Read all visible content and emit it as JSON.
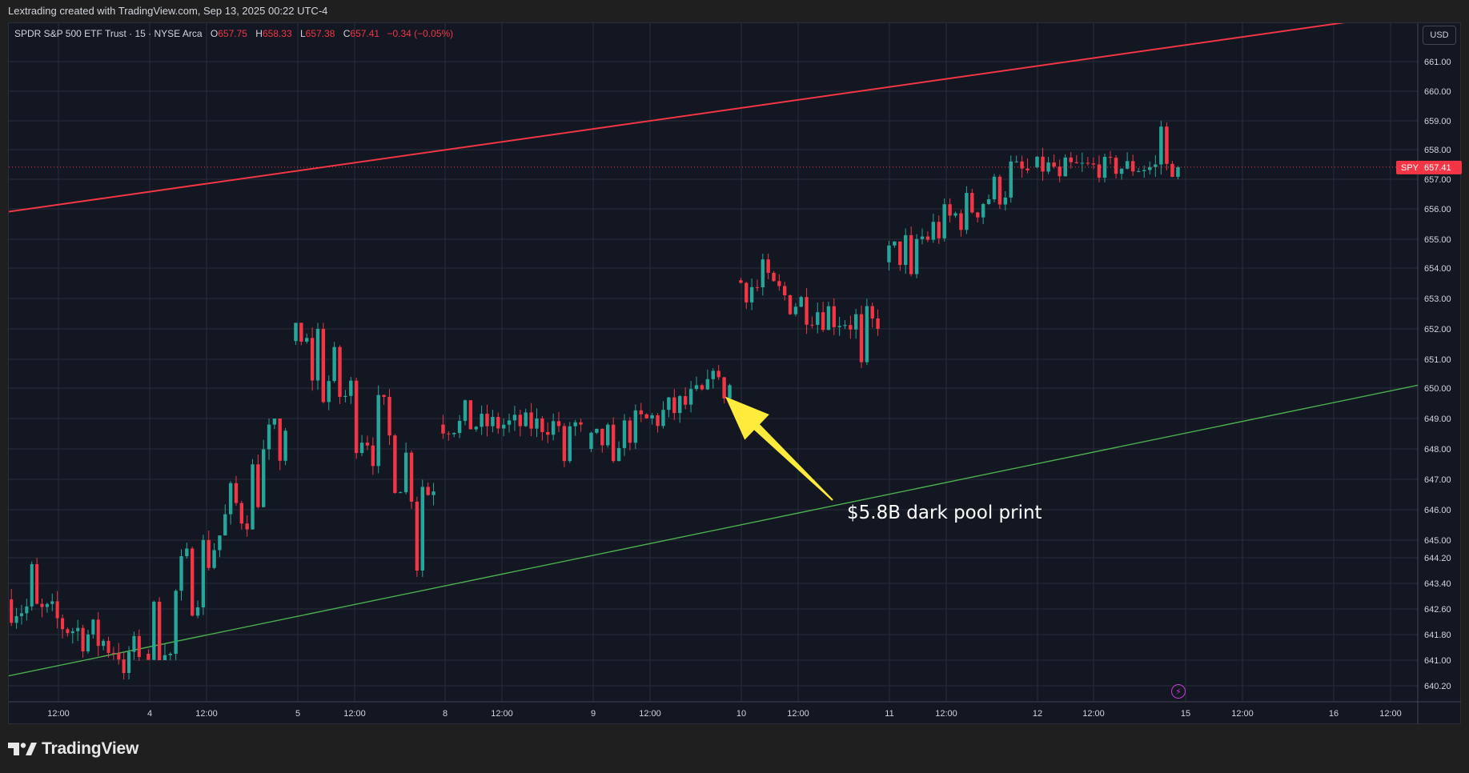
{
  "header": {
    "credit": "Lextrading created with TradingView.com, Sep 13, 2025 00:22 UTC-4"
  },
  "legend": {
    "symbol": "SPDR S&P 500 ETF Trust · 15 · NYSE Arca",
    "open_label": "O",
    "open": "657.75",
    "high_label": "H",
    "high": "658.33",
    "low_label": "L",
    "low": "657.38",
    "close_label": "C",
    "close": "657.41",
    "change": "−0.34 (−0.05%)"
  },
  "currency_button": "USD",
  "last_price": {
    "ticker": "SPY",
    "value": "657.41"
  },
  "annotation": {
    "text": "$5.8B dark pool print"
  },
  "brand": {
    "name": "TradingView"
  },
  "colors": {
    "background": "#131722",
    "up": "#26a69a",
    "down": "#f23645",
    "resistance_line": "#f23645",
    "support_line": "#4caf50",
    "arrow": "#ffeb3b",
    "grid": "#2a2e39"
  },
  "chart_data": {
    "type": "candlestick",
    "instrument": "SPDR S&P 500 ETF Trust",
    "interval": "15",
    "exchange": "NYSE Arca",
    "currency": "USD",
    "y_ticks": [
      "640.20",
      "641.00",
      "641.80",
      "642.60",
      "643.40",
      "644.20",
      "645.00",
      "646.00",
      "647.00",
      "648.00",
      "649.00",
      "650.00",
      "651.00",
      "652.00",
      "653.00",
      "654.00",
      "655.00",
      "656.00",
      "657.00",
      "658.00",
      "659.00",
      "660.00",
      "661.00"
    ],
    "x_ticks": [
      "12:00",
      "4",
      "12:00",
      "5",
      "12:00",
      "8",
      "12:00",
      "9",
      "12:00",
      "10",
      "12:00",
      "11",
      "12:00",
      "12",
      "12:00",
      "15",
      "12:00",
      "16",
      "12:00"
    ],
    "last_price": 657.41,
    "ohlc_last": {
      "open": 657.75,
      "high": 658.33,
      "low": 657.38,
      "close": 657.41
    },
    "sessions": [
      {
        "day": "Sep 3",
        "open": 642.9,
        "close": 641.1,
        "high": 644.2,
        "low": 640.4
      },
      {
        "day": "Sep 4",
        "open": 641.2,
        "close": 648.6,
        "high": 649.0,
        "low": 641.0
      },
      {
        "day": "Sep 5",
        "open": 651.6,
        "close": 646.6,
        "high": 652.2,
        "low": 643.6
      },
      {
        "day": "Sep 8",
        "open": 648.8,
        "close": 648.8,
        "high": 649.8,
        "low": 647.4
      },
      {
        "day": "Sep 9",
        "open": 648.0,
        "close": 650.1,
        "high": 650.8,
        "low": 647.4
      },
      {
        "day": "Sep 10",
        "open": 653.6,
        "close": 652.0,
        "high": 654.5,
        "low": 650.7
      },
      {
        "day": "Sep 11",
        "open": 654.2,
        "close": 657.3,
        "high": 657.8,
        "low": 653.6
      },
      {
        "day": "Sep 12",
        "open": 657.4,
        "close": 657.41,
        "high": 659.0,
        "low": 656.9
      }
    ],
    "trendlines": [
      {
        "role": "resistance",
        "color": "#f23645",
        "start": {
          "x": "Sep 3",
          "y": 655.9
        },
        "end": {
          "x": "Sep 15",
          "y": 662.4
        }
      },
      {
        "role": "support",
        "color": "#4caf50",
        "start": {
          "x": "Sep 3",
          "y": 640.5
        },
        "end": {
          "x": "Sep 16",
          "y": 650.1
        }
      }
    ],
    "arrow_target": {
      "x": "Sep 9 late session",
      "y": 649.8
    }
  }
}
